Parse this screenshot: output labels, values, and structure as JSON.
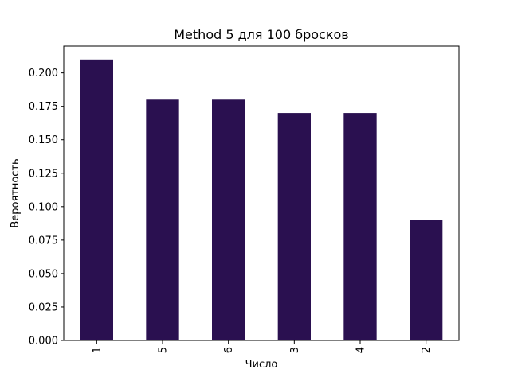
{
  "chart_data": {
    "type": "bar",
    "title": "Method 5 для 100 бросков",
    "xlabel": "Число",
    "ylabel": "Вероятность",
    "categories": [
      "1",
      "5",
      "6",
      "3",
      "4",
      "2"
    ],
    "values": [
      0.21,
      0.18,
      0.18,
      0.17,
      0.17,
      0.09
    ],
    "ylim": [
      0,
      0.22
    ],
    "yticks": [
      "0.000",
      "0.025",
      "0.050",
      "0.075",
      "0.100",
      "0.125",
      "0.150",
      "0.175",
      "0.200"
    ],
    "xtick_rotation": "vertical",
    "grid": false,
    "legend": "none",
    "bar_color": "#2a1050"
  }
}
